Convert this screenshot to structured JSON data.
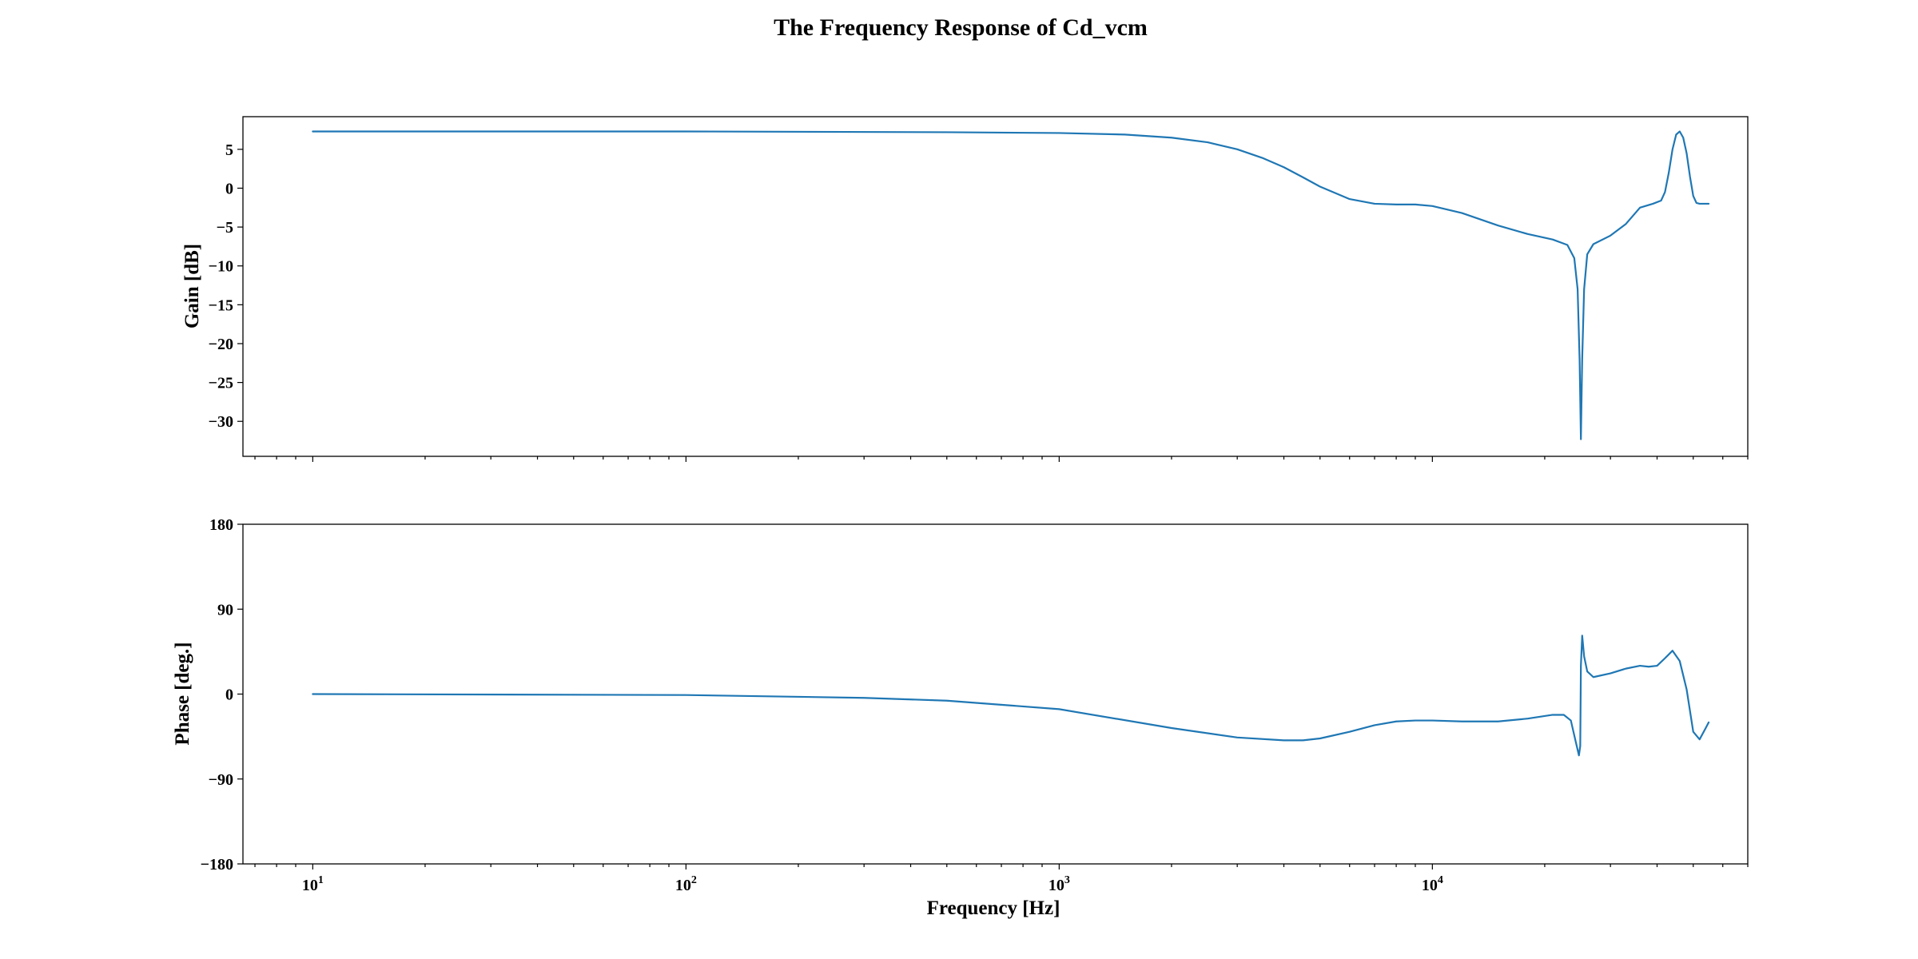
{
  "chart_data": {
    "type": "line",
    "title": "The Frequency Response of Cd_vcm",
    "color": "#1f77b4",
    "xscale": "log",
    "xlim": [
      6.5,
      70000
    ],
    "x_ticks": [
      {
        "value": 10,
        "base": "10",
        "exp": "1"
      },
      {
        "value": 100,
        "base": "10",
        "exp": "2"
      },
      {
        "value": 1000,
        "base": "10",
        "exp": "3"
      },
      {
        "value": 10000,
        "base": "10",
        "exp": "4"
      }
    ],
    "xlabel": "Frequency [Hz]",
    "subplots": [
      {
        "name": "gain",
        "ylabel": "Gain [dB]",
        "ylim": [
          -34.5,
          9.2
        ],
        "yticks": [
          5,
          0,
          -5,
          -10,
          -15,
          -20,
          -25,
          -30
        ],
        "ytick_labels": [
          "5",
          "0",
          "−5",
          "−10",
          "−15",
          "−20",
          "−25",
          "−30"
        ],
        "x": [
          10,
          100,
          500,
          1000,
          1500,
          2000,
          2500,
          3000,
          3500,
          4000,
          4500,
          5000,
          6000,
          7000,
          8000,
          9000,
          10000,
          12000,
          15000,
          18000,
          21000,
          23000,
          24000,
          24500,
          24800,
          25000,
          25200,
          25500,
          26000,
          27000,
          30000,
          33000,
          36000,
          39000,
          41000,
          42000,
          43000,
          44000,
          45000,
          46000,
          47000,
          48000,
          49000,
          50000,
          51000,
          52000,
          53000,
          54000,
          55000
        ],
        "values": [
          7.3,
          7.3,
          7.2,
          7.1,
          6.9,
          6.5,
          5.9,
          5.0,
          3.9,
          2.7,
          1.4,
          0.2,
          -1.4,
          -2.0,
          -2.1,
          -2.1,
          -2.3,
          -3.2,
          -4.8,
          -5.9,
          -6.6,
          -7.3,
          -9.0,
          -13.0,
          -22.0,
          -32.3,
          -22.0,
          -13.0,
          -8.5,
          -7.2,
          -6.1,
          -4.6,
          -2.5,
          -2.0,
          -1.6,
          -0.5,
          2.0,
          5.0,
          6.9,
          7.3,
          6.5,
          4.5,
          1.5,
          -1.0,
          -1.9,
          -2.0,
          -2.0,
          -2.0,
          -2.0
        ]
      },
      {
        "name": "phase",
        "ylabel": "Phase [deg.]",
        "ylim": [
          -180,
          180
        ],
        "yticks": [
          180,
          90,
          0,
          -90,
          -180
        ],
        "ytick_labels": [
          "180",
          "90",
          "0",
          "−90",
          "−180"
        ],
        "x": [
          10,
          100,
          300,
          500,
          1000,
          2000,
          3000,
          4000,
          4500,
          5000,
          6000,
          7000,
          8000,
          9000,
          10000,
          12000,
          15000,
          18000,
          21000,
          22500,
          23500,
          24200,
          24700,
          24900,
          25000,
          25200,
          25500,
          26000,
          27000,
          30000,
          33000,
          36000,
          38000,
          40000,
          42000,
          44000,
          46000,
          48000,
          50000,
          52000,
          54000,
          55000
        ],
        "values": [
          0,
          -1,
          -4,
          -7,
          -16,
          -36,
          -46,
          -49,
          -49,
          -47,
          -40,
          -33,
          -29,
          -28,
          -28,
          -29,
          -29,
          -26,
          -22,
          -22,
          -28,
          -50,
          -65,
          -55,
          30,
          62,
          40,
          24,
          18,
          22,
          27,
          30,
          29,
          30,
          38,
          46,
          35,
          5,
          -40,
          -48,
          -36,
          -30
        ]
      }
    ]
  }
}
